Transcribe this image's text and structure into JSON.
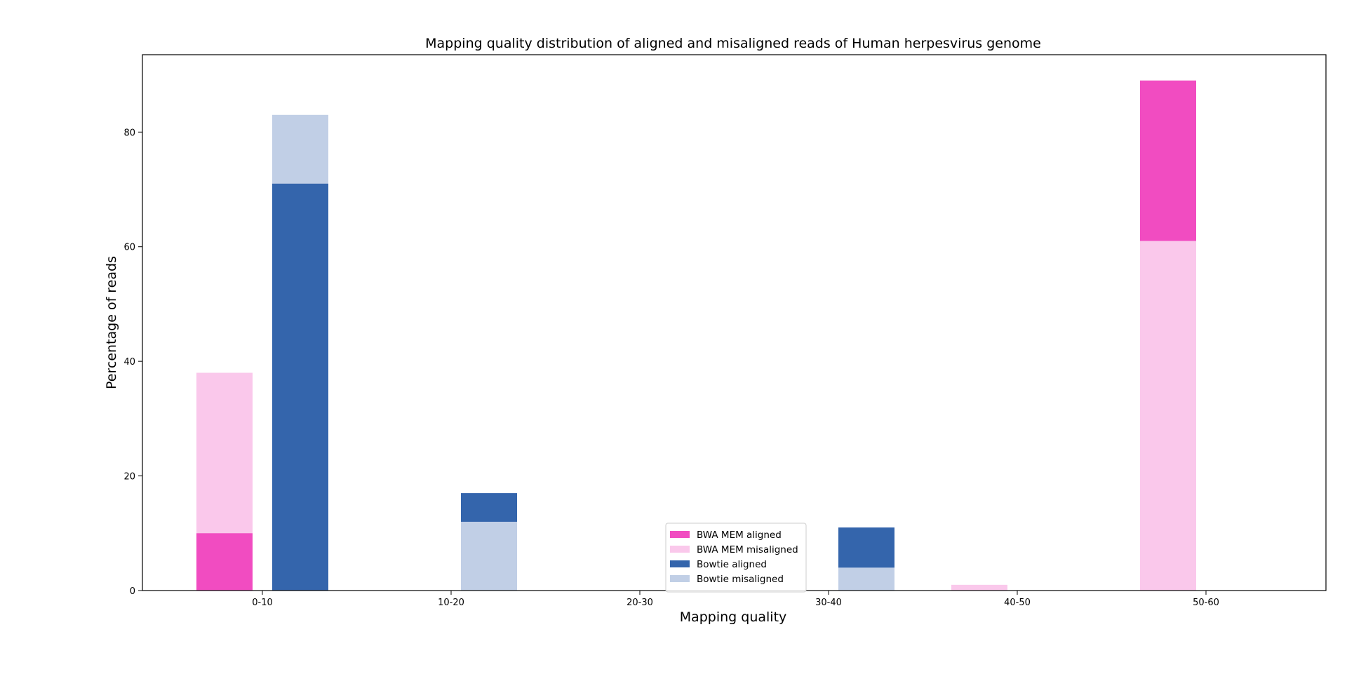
{
  "chart_data": {
    "type": "bar",
    "title": "Mapping quality distribution of aligned and misaligned reads of Human herpesvirus genome",
    "xlabel": "Mapping quality",
    "ylabel": "Percentage of reads",
    "categories": [
      "0-10",
      "10-20",
      "20-30",
      "30-40",
      "40-50",
      "50-60"
    ],
    "yticks": [
      0,
      20,
      40,
      60,
      80
    ],
    "ylim": [
      0,
      93.5
    ],
    "grid": false,
    "legend_position": "bottom-center",
    "series": [
      {
        "name": "BWA MEM aligned",
        "color": "#f14cc1",
        "values": [
          10,
          0,
          0,
          0,
          0,
          89
        ],
        "group": "bwa"
      },
      {
        "name": "BWA MEM misaligned",
        "color": "#fac8eb",
        "values": [
          38,
          0,
          0,
          0,
          1,
          61
        ],
        "group": "bwa"
      },
      {
        "name": "Bowtie aligned",
        "color": "#3465ac",
        "values": [
          71,
          17,
          0,
          11,
          0,
          0
        ],
        "group": "bowtie"
      },
      {
        "name": "Bowtie misaligned",
        "color": "#c1cfe6",
        "values": [
          83,
          12,
          0,
          4,
          0,
          0
        ],
        "group": "bowtie"
      }
    ]
  }
}
